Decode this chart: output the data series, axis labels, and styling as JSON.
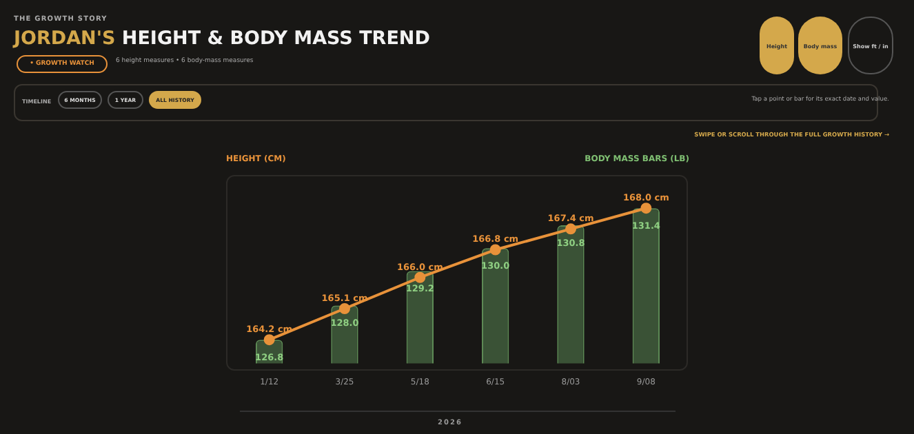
{
  "chart_data": {
    "type": "bar",
    "subtitle": "THE GROWTH STORY",
    "title": "JORDAN'S HEIGHT & BODY MASS TREND",
    "xlabel": "2026",
    "categories": [
      "1/12",
      "3/25",
      "5/18",
      "6/15",
      "8/03",
      "9/08"
    ],
    "series": [
      {
        "type": "line",
        "color": "#e8923a",
        "values": [
          164.2,
          165.1,
          166.0,
          166.8,
          167.4,
          168.0
        ],
        "value_labels": [
          "164.2 cm",
          "165.1 cm",
          "166.0 cm",
          "166.8 cm",
          "167.4 cm",
          "168.0 cm"
        ],
        "marker": "circle"
      },
      {
        "axis": "y2",
        "color": "#3a5236",
        "values": [
          126.8,
          128.0,
          129.2,
          130.0,
          130.8,
          131.4
        ],
        "value_labels": [
          "126.8",
          "128.0",
          "129.2",
          "130.0",
          "130.8",
          "131.4"
        ]
      }
    ],
    "tick_labels": "x",
    "legend": false,
    "annotations": [
      "• GROWTH WATCH",
      "6 height measures • 6 body-mass measures",
      "TIMELINE",
      "6 MONTHS",
      "1 YEAR",
      "ALL HISTORY",
      "Height",
      "Body mass",
      "Show ft / in",
      "Tap a point or bar for its exact date and value.",
      "SWIPE OR SCROLL THROUGH THE FULL GROWTH HISTORY →",
      "HEIGHT (CM)",
      "BODY MASS BARS (LB)"
    ]
  }
}
